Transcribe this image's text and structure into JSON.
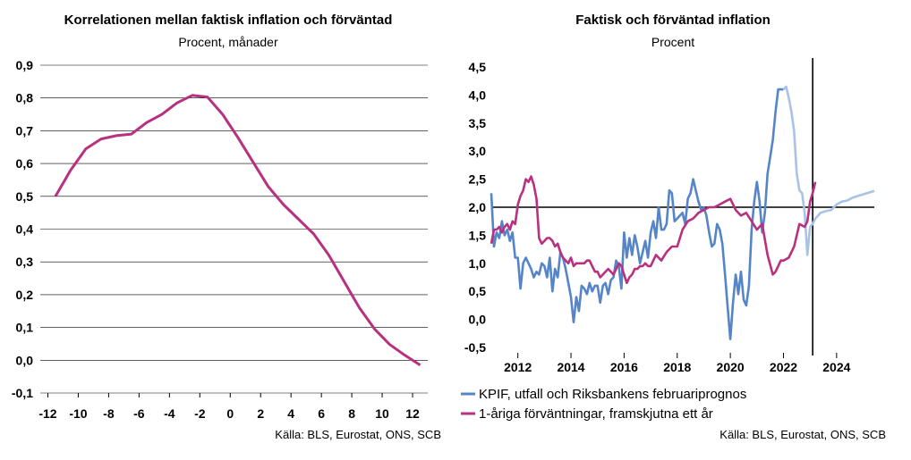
{
  "colors": {
    "magenta": "#b8317f",
    "blue": "#5585c8",
    "light_blue": "#a9c2e6"
  },
  "chart_data": [
    {
      "type": "line",
      "title": "Korrelationen mellan faktisk inflation och förväntad",
      "subtitle": "Procent, månader",
      "source": "Källa: BLS, Eurostat, ONS, SCB",
      "xlim": [
        -12.5,
        13
      ],
      "ylim": [
        -0.1,
        0.9
      ],
      "x_ticks": [
        -12,
        -10,
        -8,
        -6,
        -4,
        -2,
        0,
        2,
        4,
        6,
        8,
        10,
        12
      ],
      "x_tick_labels": [
        "-12",
        "-10",
        "-8",
        "-6",
        "-4",
        "-2",
        "0",
        "2",
        "4",
        "6",
        "8",
        "10",
        "12"
      ],
      "y_ticks": [
        -0.1,
        0.0,
        0.1,
        0.2,
        0.3,
        0.4,
        0.5,
        0.6,
        0.7,
        0.8,
        0.9
      ],
      "y_tick_labels": [
        "-0,1",
        "0,0",
        "0,1",
        "0,2",
        "0,3",
        "0,4",
        "0,5",
        "0,6",
        "0,7",
        "0,8",
        "0,9"
      ],
      "grid": "horizontal",
      "series": [
        {
          "color": "#b8317f",
          "x": [
            -11.5,
            -10.5,
            -9.5,
            -8.5,
            -7.5,
            -6.5,
            -5.5,
            -4.5,
            -3.5,
            -2.5,
            -1.5,
            -0.5,
            0.5,
            1.5,
            2.5,
            3.5,
            4.5,
            5.5,
            6.5,
            7.5,
            8.5,
            9.5,
            10.5,
            11.5,
            12.5
          ],
          "y": [
            0.5,
            0.58,
            0.645,
            0.675,
            0.685,
            0.69,
            0.725,
            0.75,
            0.785,
            0.808,
            0.803,
            0.75,
            0.68,
            0.605,
            0.53,
            0.475,
            0.43,
            0.385,
            0.32,
            0.24,
            0.16,
            0.095,
            0.048,
            0.015,
            -0.015
          ]
        }
      ]
    },
    {
      "type": "line",
      "title": "Faktisk och förväntad inflation",
      "subtitle": "Procent",
      "source": "Källa: BLS, Eurostat, ONS, SCB",
      "xlim": [
        2011.0,
        2025.42
      ],
      "ylim": [
        -0.5,
        4.5
      ],
      "x_ticks": [
        2012,
        2014,
        2016,
        2018,
        2020,
        2022,
        2024
      ],
      "x_tick_labels": [
        "2012",
        "2014",
        "2016",
        "2018",
        "2020",
        "2022",
        "2024"
      ],
      "y_ticks": [
        -0.5,
        0.0,
        0.5,
        1.0,
        1.5,
        2.0,
        2.5,
        3.0,
        3.5,
        4.0,
        4.5
      ],
      "y_tick_labels": [
        "-0,5",
        "0,0",
        "0,5",
        "1,0",
        "1,5",
        "2,0",
        "2,5",
        "3,0",
        "3,5",
        "4,0",
        "4,5"
      ],
      "grid": "none",
      "reference_line_y": 2.0,
      "vertical_line_x": 2023.1,
      "legend_position": "below",
      "series": [
        {
          "name": "KPIF, utfall och Riksbankens februariprognos",
          "color": "#5585c8",
          "x": [
            2011.0,
            2011.1,
            2011.2,
            2011.3,
            2011.4,
            2011.5,
            2011.6,
            2011.7,
            2011.8,
            2011.9,
            2012.0,
            2012.1,
            2012.2,
            2012.3,
            2012.4,
            2012.5,
            2012.6,
            2012.7,
            2012.8,
            2012.9,
            2013.0,
            2013.1,
            2013.2,
            2013.3,
            2013.4,
            2013.5,
            2013.6,
            2013.7,
            2013.8,
            2013.9,
            2014.0,
            2014.1,
            2014.2,
            2014.3,
            2014.4,
            2014.5,
            2014.6,
            2014.7,
            2014.8,
            2014.9,
            2015.0,
            2015.1,
            2015.2,
            2015.3,
            2015.4,
            2015.5,
            2015.6,
            2015.7,
            2015.8,
            2015.9,
            2016.0,
            2016.1,
            2016.2,
            2016.3,
            2016.4,
            2016.5,
            2016.6,
            2016.7,
            2016.8,
            2016.9,
            2017.0,
            2017.1,
            2017.2,
            2017.3,
            2017.4,
            2017.5,
            2017.6,
            2017.7,
            2017.8,
            2017.9,
            2018.0,
            2018.1,
            2018.2,
            2018.3,
            2018.4,
            2018.5,
            2018.6,
            2018.7,
            2018.8,
            2018.9,
            2019.0,
            2019.1,
            2019.2,
            2019.3,
            2019.4,
            2019.5,
            2019.6,
            2019.7,
            2019.8,
            2019.9,
            2020.0,
            2020.1,
            2020.2,
            2020.3,
            2020.4,
            2020.5,
            2020.6,
            2020.7,
            2020.8,
            2020.9,
            2021.0,
            2021.1,
            2021.2,
            2021.3,
            2021.4,
            2021.5,
            2021.6,
            2021.7,
            2021.8,
            2021.9,
            2022.0
          ],
          "y": [
            2.25,
            1.3,
            1.55,
            1.45,
            1.75,
            1.5,
            1.6,
            1.4,
            1.55,
            1.1,
            1.1,
            0.55,
            1.0,
            1.1,
            1.0,
            0.9,
            0.75,
            0.85,
            0.8,
            1.0,
            0.95,
            0.75,
            1.1,
            0.5,
            0.9,
            0.75,
            1.2,
            1.1,
            0.9,
            0.65,
            0.4,
            -0.05,
            0.4,
            0.15,
            0.6,
            0.55,
            0.45,
            0.65,
            0.5,
            0.6,
            0.6,
            0.3,
            0.6,
            0.65,
            0.45,
            0.7,
            0.75,
            1.05,
            0.95,
            0.55,
            1.55,
            1.1,
            1.45,
            1.15,
            1.5,
            1.3,
            1.0,
            1.2,
            1.4,
            1.1,
            1.55,
            1.75,
            1.45,
            2.0,
            1.6,
            1.6,
            1.7,
            2.3,
            2.25,
            1.75,
            1.8,
            1.85,
            1.9,
            1.7,
            2.15,
            2.25,
            2.5,
            2.3,
            2.1,
            1.95,
            2.0,
            1.85,
            1.55,
            1.3,
            1.35,
            1.7,
            1.6,
            1.35,
            0.8,
            0.2,
            -0.35,
            0.3,
            0.8,
            0.45,
            0.85,
            0.35,
            0.25,
            0.6,
            1.6,
            2.1,
            2.45,
            2.1,
            1.55,
            1.9,
            2.6,
            2.9,
            3.2,
            3.7,
            4.1,
            4.1,
            4.1
          ]
        },
        {
          "color": "#a9c2e6",
          "x": [
            2022.0,
            2022.1,
            2022.2,
            2022.3,
            2022.4,
            2022.5,
            2022.6,
            2022.7,
            2022.8,
            2022.9,
            2023.0,
            2023.1,
            2023.2,
            2023.4,
            2023.6,
            2023.8,
            2024.0,
            2024.2,
            2024.4,
            2024.6,
            2024.8,
            2025.0,
            2025.2,
            2025.42
          ],
          "y": [
            4.1,
            4.15,
            3.95,
            3.7,
            3.35,
            2.6,
            2.3,
            2.25,
            1.9,
            1.15,
            1.65,
            1.7,
            1.8,
            1.9,
            1.93,
            1.95,
            2.05,
            2.1,
            2.12,
            2.17,
            2.2,
            2.23,
            2.26,
            2.29
          ]
        },
        {
          "name": "1-åriga förväntningar, framskjutna ett år",
          "color": "#b8317f",
          "x": [
            2011.0,
            2011.1,
            2011.2,
            2011.3,
            2011.4,
            2011.5,
            2011.6,
            2011.7,
            2011.8,
            2011.9,
            2012.0,
            2012.1,
            2012.2,
            2012.3,
            2012.4,
            2012.5,
            2012.6,
            2012.7,
            2012.8,
            2012.9,
            2013.0,
            2013.1,
            2013.2,
            2013.3,
            2013.4,
            2013.5,
            2013.6,
            2013.7,
            2013.8,
            2013.9,
            2014.0,
            2014.1,
            2014.2,
            2014.3,
            2014.4,
            2014.5,
            2014.6,
            2014.7,
            2014.8,
            2014.9,
            2015.0,
            2015.1,
            2015.2,
            2015.3,
            2015.4,
            2015.5,
            2015.6,
            2015.7,
            2015.8,
            2015.9,
            2016.0,
            2016.1,
            2016.2,
            2016.3,
            2016.4,
            2016.5,
            2016.6,
            2016.7,
            2016.8,
            2016.9,
            2017.0,
            2017.2,
            2017.4,
            2017.6,
            2017.8,
            2018.0,
            2018.2,
            2018.4,
            2018.6,
            2018.8,
            2019.0,
            2019.2,
            2019.4,
            2019.6,
            2019.8,
            2020.0,
            2020.2,
            2020.4,
            2020.6,
            2020.8,
            2021.0,
            2021.2,
            2021.4,
            2021.6,
            2021.7,
            2021.8,
            2021.9,
            2022.0,
            2022.2,
            2022.4,
            2022.6,
            2022.8,
            2022.9,
            2023.0,
            2023.1,
            2023.2
          ],
          "y": [
            1.35,
            1.6,
            1.6,
            1.65,
            1.55,
            1.65,
            1.7,
            1.6,
            1.75,
            1.7,
            2.05,
            2.2,
            2.3,
            2.5,
            2.45,
            2.55,
            2.4,
            2.15,
            1.45,
            1.35,
            1.4,
            1.45,
            1.45,
            1.4,
            1.3,
            1.35,
            1.2,
            1.1,
            1.05,
            1.0,
            1.1,
            0.95,
            1.0,
            1.0,
            1.0,
            1.0,
            1.05,
            1.05,
            0.95,
            0.85,
            0.85,
            0.75,
            0.8,
            0.85,
            0.9,
            0.85,
            0.8,
            0.9,
            1.0,
            0.95,
            0.8,
            0.65,
            0.75,
            0.8,
            0.9,
            0.9,
            0.95,
            0.95,
            1.0,
            0.95,
            0.95,
            1.15,
            1.05,
            1.2,
            1.3,
            1.3,
            1.6,
            1.75,
            1.8,
            1.9,
            1.95,
            2.0,
            2.0,
            2.05,
            2.1,
            2.15,
            1.95,
            1.85,
            1.9,
            1.75,
            1.6,
            1.7,
            1.15,
            0.8,
            0.85,
            0.95,
            1.05,
            1.05,
            1.1,
            1.3,
            1.7,
            1.65,
            1.75,
            2.1,
            2.25,
            2.45
          ]
        }
      ]
    }
  ],
  "legend": {
    "kpif": "KPIF, utfall och Riksbankens februariprognos",
    "expectations": "1-åriga förväntningar, framskjutna ett år"
  }
}
